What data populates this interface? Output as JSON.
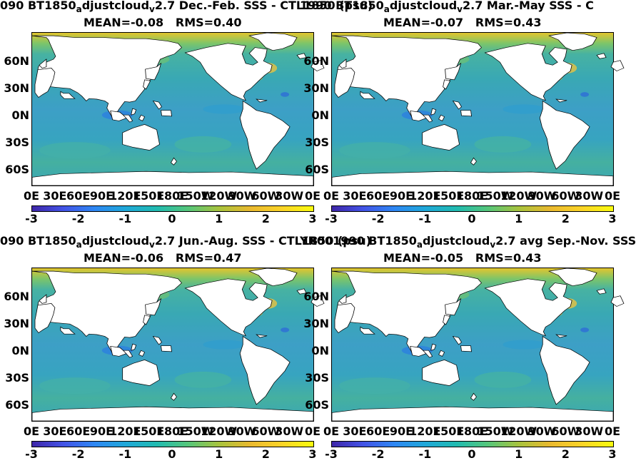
{
  "panels": [
    {
      "title_main": "090 BT1850",
      "title_sub1": "a",
      "title_mid": "djustcloud",
      "title_sub2": "v",
      "title_end": "2.7  Dec.-Feb. SSS - CTL1850 (psu)",
      "mean": "MEAN=-0.08",
      "rms": "RMS=0.40"
    },
    {
      "title_main": "1990 BT1850",
      "title_sub1": "a",
      "title_mid": "djustcloud",
      "title_sub2": "v",
      "title_end": "2.7 Mar.-May SSS - C",
      "mean": "MEAN=-0.07",
      "rms": "RMS=0.43"
    },
    {
      "title_main": "090 BT1850",
      "title_sub1": "a",
      "title_mid": "djustcloud",
      "title_sub2": "v",
      "title_end": "2.7 Jun.-Aug. SSS - CTL1850 (psu)",
      "mean": "MEAN=-0.06",
      "rms": "RMS=0.47"
    },
    {
      "title_main": "YR001990 BT1850",
      "title_sub1": "a",
      "title_mid": "djustcloud",
      "title_sub2": "v",
      "title_end": "2.7 avg Sep.-Nov. SSS",
      "mean": "MEAN=-0.05",
      "rms": "RMS=0.43"
    }
  ],
  "lat_ticks": [
    "60N",
    "30N",
    "0N",
    "30S",
    "60S"
  ],
  "lon_ticks": [
    "0E",
    "30E",
    "60E",
    "90E",
    "120E",
    "150E",
    "180E",
    "150W",
    "120W",
    "90W",
    "60W",
    "30W",
    "0E"
  ],
  "colorbar_ticks": [
    "-3",
    "-2",
    "-1",
    "0",
    "1",
    "2",
    "3"
  ],
  "chart_data": {
    "type": "heatmap",
    "colormap": "parula",
    "clim": [
      -3,
      3
    ],
    "xlim": [
      0,
      360
    ],
    "ylim": [
      -80,
      90
    ],
    "panels": [
      {
        "season": "Dec.-Feb.",
        "mean": -0.08,
        "rms": 0.4
      },
      {
        "season": "Mar.-May",
        "mean": -0.07,
        "rms": 0.43
      },
      {
        "season": "Jun.-Aug.",
        "mean": -0.06,
        "rms": 0.47
      },
      {
        "season": "Sep.-Nov.",
        "mean": -0.05,
        "rms": 0.43
      }
    ]
  }
}
